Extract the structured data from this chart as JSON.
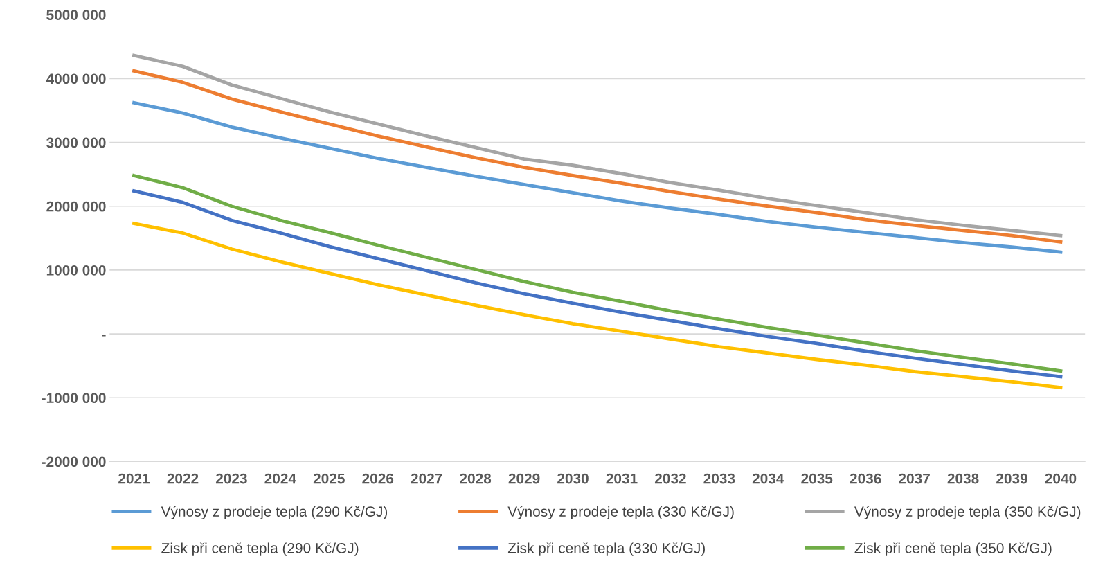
{
  "chart_data": {
    "type": "line",
    "categories": [
      "2021",
      "2022",
      "2023",
      "2024",
      "2025",
      "2026",
      "2027",
      "2028",
      "2029",
      "2030",
      "2031",
      "2032",
      "2033",
      "2034",
      "2035",
      "2036",
      "2037",
      "2038",
      "2039",
      "2040"
    ],
    "series": [
      {
        "name": "Výnosy z prodeje tepla (290 Kč/GJ)",
        "color": "#5b9bd5",
        "values": [
          3620000,
          3460000,
          3240000,
          3070000,
          2910000,
          2750000,
          2610000,
          2470000,
          2340000,
          2210000,
          2080000,
          1970000,
          1870000,
          1760000,
          1670000,
          1590000,
          1510000,
          1430000,
          1360000,
          1280000
        ]
      },
      {
        "name": "Výnosy z prodeje tepla (330 Kč/GJ)",
        "color": "#ed7d31",
        "values": [
          4120000,
          3940000,
          3680000,
          3480000,
          3290000,
          3100000,
          2930000,
          2760000,
          2610000,
          2480000,
          2360000,
          2230000,
          2110000,
          2000000,
          1900000,
          1790000,
          1700000,
          1620000,
          1540000,
          1440000
        ]
      },
      {
        "name": "Výnosy z prodeje tepla (350 Kč/GJ)",
        "color": "#a5a5a5",
        "values": [
          4360000,
          4190000,
          3900000,
          3690000,
          3480000,
          3290000,
          3100000,
          2920000,
          2740000,
          2640000,
          2510000,
          2370000,
          2250000,
          2120000,
          2010000,
          1900000,
          1790000,
          1700000,
          1620000,
          1540000
        ]
      },
      {
        "name": "Zisk při ceně tepla (290 Kč/GJ)",
        "color": "#ffc000",
        "values": [
          1730000,
          1580000,
          1330000,
          1130000,
          950000,
          770000,
          610000,
          450000,
          300000,
          160000,
          40000,
          -80000,
          -200000,
          -300000,
          -400000,
          -490000,
          -590000,
          -670000,
          -750000,
          -840000
        ]
      },
      {
        "name": "Zisk při ceně tepla (330 Kč/GJ)",
        "color": "#4472c4",
        "values": [
          2240000,
          2060000,
          1780000,
          1580000,
          1370000,
          1180000,
          990000,
          800000,
          630000,
          480000,
          340000,
          210000,
          80000,
          -40000,
          -150000,
          -270000,
          -380000,
          -480000,
          -580000,
          -670000
        ]
      },
      {
        "name": "Zisk při ceně tepla (350 Kč/GJ)",
        "color": "#70ad47",
        "values": [
          2480000,
          2290000,
          2000000,
          1780000,
          1590000,
          1390000,
          1200000,
          1010000,
          820000,
          650000,
          510000,
          360000,
          230000,
          100000,
          -20000,
          -140000,
          -260000,
          -370000,
          -470000,
          -580000
        ]
      }
    ],
    "ylim": [
      -2000000,
      5000000
    ],
    "yticks": [
      {
        "value": -2000000,
        "label": "-2000 000"
      },
      {
        "value": -1000000,
        "label": "-1000 000"
      },
      {
        "value": 0,
        "label": "-"
      },
      {
        "value": 1000000,
        "label": "1000 000"
      },
      {
        "value": 2000000,
        "label": "2000 000"
      },
      {
        "value": 3000000,
        "label": "3000 000"
      },
      {
        "value": 4000000,
        "label": "4000 000"
      },
      {
        "value": 5000000,
        "label": "5000 000"
      }
    ],
    "grid": "y",
    "legend": "bottom",
    "marker": "none",
    "line_style": "solid"
  }
}
